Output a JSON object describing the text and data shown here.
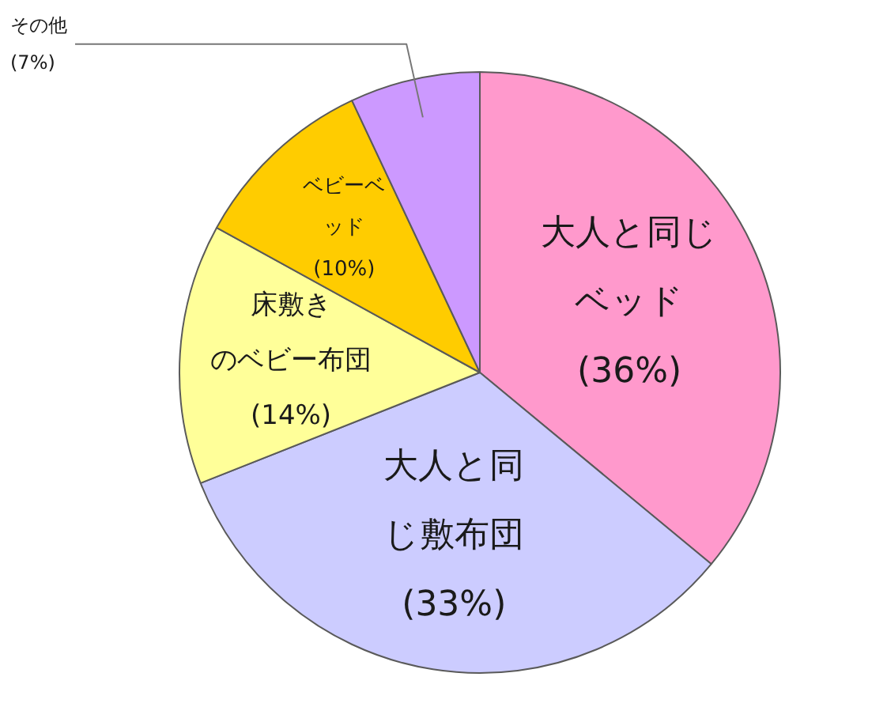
{
  "chart_data": {
    "type": "pie",
    "categories": [
      "大人と同じベッド",
      "大人と同じ敷布団",
      "床敷きのベビー布団",
      "ベビーベッド",
      "その他"
    ],
    "values": [
      36,
      33,
      14,
      10,
      7
    ],
    "colors": [
      "#ff99cc",
      "#ccccff",
      "#ffff99",
      "#ffcc00",
      "#cc99ff"
    ],
    "value_labels": [
      "(36%)",
      "(33%)",
      "(14%)",
      "(10%)",
      "(7%)"
    ]
  }
}
